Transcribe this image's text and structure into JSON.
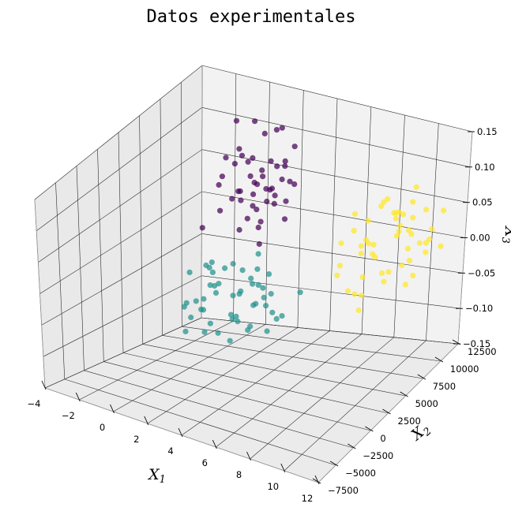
{
  "chart_data": {
    "type": "scatter3d",
    "title": "Datos experimentales",
    "xlabel": "X",
    "xlabel_sub": "1",
    "ylabel": "X",
    "ylabel_sub": "2",
    "zlabel": "X",
    "zlabel_sub": "3",
    "xlim": [
      -4,
      12
    ],
    "ylim": [
      -7500,
      12500
    ],
    "zlim": [
      -0.15,
      0.15
    ],
    "x_ticks": [
      -4,
      -2,
      0,
      2,
      4,
      6,
      8,
      10,
      12
    ],
    "x_tick_labels": [
      "−4",
      "−2",
      "0",
      "2",
      "4",
      "6",
      "8",
      "10",
      "12"
    ],
    "y_ticks": [
      -7500,
      -5000,
      -2500,
      0,
      2500,
      5000,
      7500,
      10000,
      12500
    ],
    "y_tick_labels": [
      "−7500",
      "−5000",
      "−2500",
      "0",
      "2500",
      "5000",
      "7500",
      "10000",
      "12500"
    ],
    "z_ticks": [
      -0.15,
      -0.1,
      -0.05,
      0.0,
      0.05,
      0.1,
      0.15
    ],
    "z_tick_labels": [
      "−0.15",
      "−0.10",
      "−0.05",
      "0.00",
      "0.05",
      "0.10",
      "0.15"
    ],
    "grid": true,
    "series": [
      {
        "color": "#440154",
        "points": [
          [
            -2.5,
            9500,
            -0.02
          ],
          [
            -1.8,
            10500,
            0.04
          ],
          [
            -1.2,
            9000,
            0.01
          ],
          [
            -0.5,
            11000,
            0.06
          ],
          [
            0.3,
            10000,
            0.03
          ],
          [
            0.9,
            11500,
            0.02
          ],
          [
            -0.9,
            8200,
            0.05
          ],
          [
            0.0,
            12000,
            0.09
          ],
          [
            1.2,
            8800,
            0.0
          ],
          [
            1.6,
            10200,
            0.07
          ],
          [
            0.6,
            7800,
            0.04
          ],
          [
            -1.6,
            11800,
            0.1
          ],
          [
            -0.2,
            9600,
            0.08
          ],
          [
            1.0,
            12500,
            0.05
          ],
          [
            0.4,
            10800,
            -0.01
          ],
          [
            1.9,
            9300,
            0.03
          ],
          [
            -0.7,
            12600,
            0.02
          ],
          [
            0.2,
            8400,
            0.1
          ],
          [
            1.4,
            11200,
            0.11
          ],
          [
            -1.0,
            10400,
            0.06
          ],
          [
            0.8,
            9800,
            -0.03
          ],
          [
            2.2,
            10600,
            0.05
          ],
          [
            1.1,
            7600,
            0.02
          ],
          [
            0.1,
            11600,
            0.04
          ],
          [
            1.7,
            12200,
            0.08
          ],
          [
            -0.4,
            8800,
            0.03
          ],
          [
            0.5,
            9200,
            0.06
          ],
          [
            1.3,
            10000,
            0.04
          ],
          [
            2.0,
            8000,
            0.06
          ],
          [
            0.7,
            12800,
            0.03
          ],
          [
            -1.3,
            9900,
            0.07
          ],
          [
            0.9,
            8600,
            0.09
          ],
          [
            1.5,
            7400,
            0.04
          ],
          [
            0.2,
            10300,
            0.12
          ],
          [
            -0.1,
            11300,
            0.0
          ],
          [
            1.8,
            11000,
            0.02
          ],
          [
            0.6,
            9500,
            0.05
          ],
          [
            1.0,
            10700,
            0.07
          ],
          [
            2.4,
            9600,
            0.01
          ],
          [
            0.4,
            7900,
            0.05
          ],
          [
            1.2,
            12100,
            0.06
          ],
          [
            -0.6,
            10200,
            -0.02
          ],
          [
            0.8,
            11800,
            0.1
          ],
          [
            1.6,
            8300,
            0.08
          ],
          [
            0.0,
            9000,
            0.04
          ],
          [
            1.4,
            9400,
            0.03
          ],
          [
            0.3,
            12400,
            0.02
          ],
          [
            2.1,
            11400,
            0.04
          ]
        ]
      },
      {
        "color": "#21918c",
        "points": [
          [
            2.5,
            -2000,
            -0.01
          ],
          [
            3.5,
            -500,
            0.03
          ],
          [
            4.0,
            -3500,
            -0.02
          ],
          [
            4.8,
            -1500,
            0.01
          ],
          [
            5.5,
            -4000,
            0.0
          ],
          [
            6.0,
            -2500,
            0.04
          ],
          [
            3.0,
            -4500,
            -0.03
          ],
          [
            4.5,
            -5500,
            0.02
          ],
          [
            6.5,
            -1000,
            -0.01
          ],
          [
            5.0,
            500,
            0.05
          ],
          [
            3.8,
            -2800,
            0.06
          ],
          [
            7.0,
            -3000,
            0.02
          ],
          [
            5.8,
            -5000,
            -0.02
          ],
          [
            4.2,
            -1000,
            0.0
          ],
          [
            6.8,
            -4200,
            0.03
          ],
          [
            2.8,
            -500,
            0.02
          ],
          [
            5.2,
            -3200,
            0.07
          ],
          [
            6.2,
            -500,
            0.01
          ],
          [
            7.5,
            -2000,
            0.0
          ],
          [
            4.6,
            -4800,
            0.05
          ],
          [
            3.2,
            -1800,
            0.04
          ],
          [
            5.6,
            -2200,
            -0.03
          ],
          [
            6.6,
            -5800,
            0.02
          ],
          [
            4.0,
            -6000,
            0.01
          ],
          [
            7.2,
            -4800,
            0.04
          ],
          [
            5.4,
            1000,
            0.02
          ],
          [
            3.6,
            -3800,
            0.0
          ],
          [
            6.4,
            -3600,
            0.06
          ],
          [
            5.0,
            -6500,
            0.0
          ],
          [
            4.4,
            -200,
            0.03
          ],
          [
            7.8,
            -3400,
            0.01
          ],
          [
            3.4,
            -5200,
            0.02
          ],
          [
            5.8,
            -1400,
            0.05
          ],
          [
            6.0,
            -7000,
            0.01
          ],
          [
            4.8,
            -2600,
            -0.01
          ],
          [
            8.2,
            -1200,
            0.03
          ],
          [
            2.6,
            -3000,
            0.04
          ],
          [
            5.2,
            -5600,
            0.06
          ],
          [
            6.9,
            -2600,
            -0.02
          ],
          [
            4.1,
            -4200,
            0.07
          ],
          [
            5.7,
            -300,
            0.0
          ],
          [
            3.9,
            -6600,
            0.03
          ],
          [
            7.4,
            -6000,
            0.02
          ],
          [
            6.3,
            -1800,
            0.03
          ],
          [
            4.5,
            -3500,
            0.04
          ],
          [
            3.3,
            -1200,
            0.0
          ],
          [
            5.9,
            -4400,
            0.01
          ],
          [
            5.1,
            -2000,
            0.02
          ],
          [
            6.7,
            -3300,
            0.05
          ],
          [
            4.3,
            -5000,
            0.03
          ]
        ]
      },
      {
        "color": "#fde725",
        "points": [
          [
            7.0,
            6500,
            -0.02
          ],
          [
            8.0,
            8000,
            0.02
          ],
          [
            8.5,
            5500,
            -0.03
          ],
          [
            9.0,
            7000,
            0.01
          ],
          [
            9.5,
            9000,
            0.03
          ],
          [
            10.0,
            6000,
            -0.01
          ],
          [
            7.5,
            9500,
            0.0
          ],
          [
            8.8,
            10500,
            0.04
          ],
          [
            10.5,
            8000,
            0.02
          ],
          [
            9.2,
            4500,
            -0.04
          ],
          [
            7.8,
            5000,
            0.01
          ],
          [
            10.8,
            9800,
            0.0
          ],
          [
            8.2,
            11200,
            0.03
          ],
          [
            11.0,
            7200,
            0.05
          ],
          [
            9.7,
            10200,
            -0.02
          ],
          [
            7.2,
            8200,
            0.05
          ],
          [
            8.6,
            6800,
            0.06
          ],
          [
            10.2,
            5200,
            0.01
          ],
          [
            9.0,
            12000,
            0.02
          ],
          [
            11.4,
            8800,
            0.03
          ],
          [
            7.6,
            10800,
            0.04
          ],
          [
            8.4,
            4800,
            -0.02
          ],
          [
            9.8,
            7800,
            0.06
          ],
          [
            10.6,
            11000,
            0.02
          ],
          [
            8.9,
            9200,
            -0.03
          ],
          [
            7.4,
            6000,
            0.03
          ],
          [
            11.2,
            6200,
            -0.01
          ],
          [
            9.4,
            5800,
            0.04
          ],
          [
            10.0,
            10800,
            0.0
          ],
          [
            8.1,
            7400,
            -0.05
          ],
          [
            9.6,
            12400,
            0.03
          ],
          [
            10.4,
            6600,
            0.05
          ],
          [
            7.9,
            12200,
            0.02
          ],
          [
            8.7,
            8600,
            0.07
          ],
          [
            11.6,
            10000,
            0.01
          ],
          [
            9.1,
            6400,
            0.02
          ],
          [
            10.9,
            11800,
            0.04
          ],
          [
            7.3,
            9000,
            -0.01
          ],
          [
            8.3,
            10000,
            0.06
          ],
          [
            9.9,
            9400,
            0.03
          ],
          [
            10.3,
            7600,
            0.07
          ],
          [
            8.0,
            12600,
            0.0
          ],
          [
            11.1,
            5800,
            0.02
          ],
          [
            9.3,
            11200,
            0.05
          ],
          [
            7.7,
            7000,
            0.04
          ],
          [
            10.7,
            8400,
            -0.02
          ],
          [
            8.5,
            6200,
            0.03
          ],
          [
            9.5,
            4200,
            0.01
          ],
          [
            11.8,
            7400,
            0.04
          ],
          [
            9.8,
            10400,
            0.08
          ]
        ]
      }
    ]
  }
}
